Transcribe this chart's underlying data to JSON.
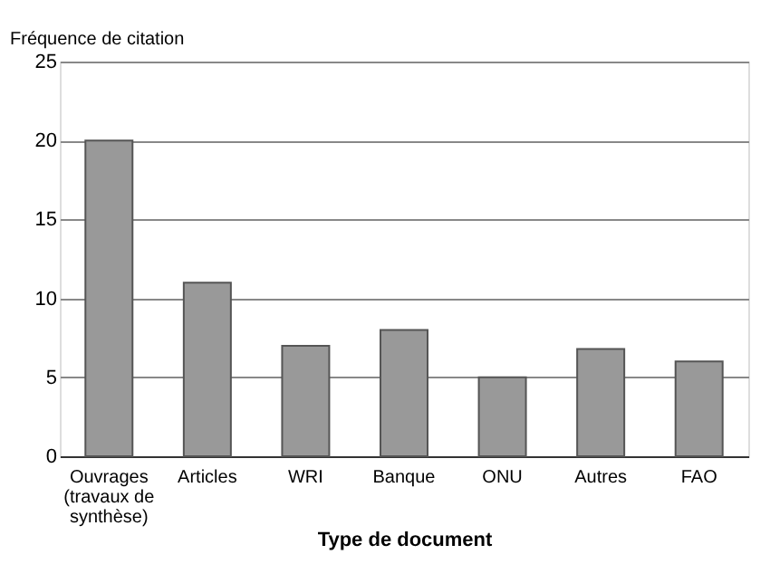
{
  "chart_data": {
    "type": "bar",
    "ylabel": "Fréquence de citation",
    "xlabel": "Type de document",
    "categories": [
      "Ouvrages (travaux de synthèse)",
      "Articles",
      "WRI",
      "Banque",
      "ONU",
      "Autres",
      "FAO"
    ],
    "values": [
      20,
      11,
      7,
      8,
      5,
      6.8,
      6
    ],
    "color": "#999999",
    "ylim": [
      0,
      25
    ],
    "yticks": [
      0,
      5,
      10,
      15,
      20,
      25
    ],
    "grid": "y"
  }
}
